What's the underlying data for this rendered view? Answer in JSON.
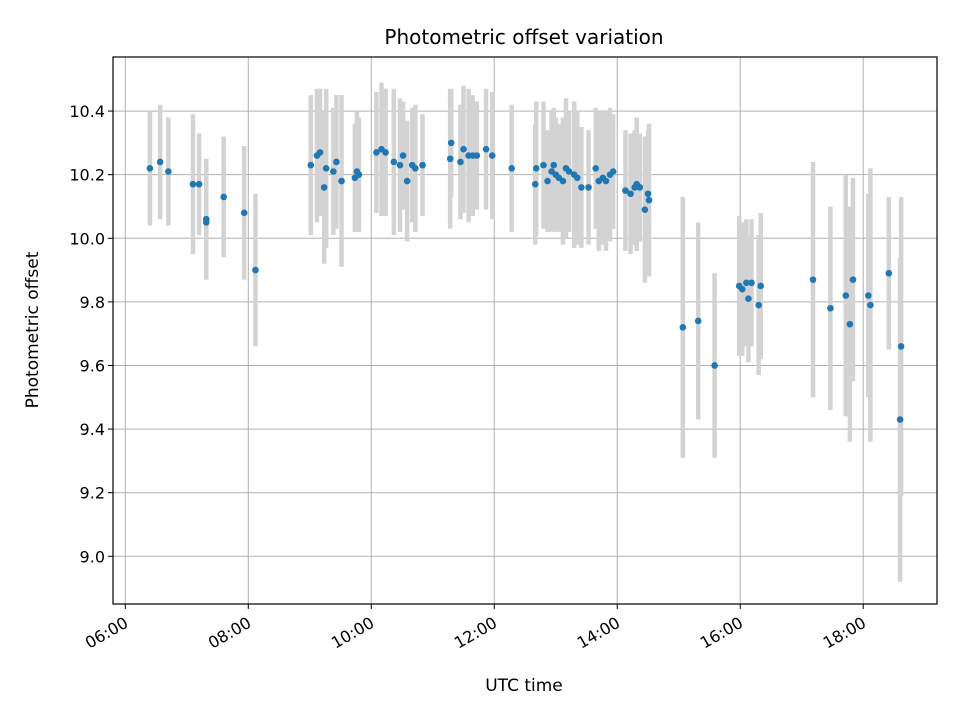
{
  "chart_data": {
    "type": "scatter",
    "title": "Photometric offset variation",
    "xlabel": "UTC time",
    "ylabel": "Photometric offset",
    "xlim": [
      "05:48",
      "19:12"
    ],
    "ylim": [
      8.85,
      10.57
    ],
    "xticks": [
      "06:00",
      "08:00",
      "10:00",
      "12:00",
      "14:00",
      "16:00",
      "18:00"
    ],
    "yticks": [
      "9.0",
      "9.2",
      "9.4",
      "9.6",
      "9.8",
      "10.0",
      "10.2",
      "10.4"
    ],
    "grid": true,
    "marker_color": "#1f77b4",
    "errorbar_color": "#d3d3d3",
    "points": [
      {
        "x": "06:24",
        "y": 10.22,
        "yerr": 0.18
      },
      {
        "x": "06:34",
        "y": 10.24,
        "yerr": 0.18
      },
      {
        "x": "06:42",
        "y": 10.21,
        "yerr": 0.17
      },
      {
        "x": "07:06",
        "y": 10.17,
        "yerr": 0.22
      },
      {
        "x": "07:12",
        "y": 10.17,
        "yerr": 0.16
      },
      {
        "x": "07:19",
        "y": 10.06,
        "yerr": 0.19
      },
      {
        "x": "07:19",
        "y": 10.05,
        "yerr": 0.18
      },
      {
        "x": "07:36",
        "y": 10.13,
        "yerr": 0.19
      },
      {
        "x": "07:56",
        "y": 10.08,
        "yerr": 0.21
      },
      {
        "x": "08:07",
        "y": 9.9,
        "yerr": 0.24
      },
      {
        "x": "09:01",
        "y": 10.23,
        "yerr": 0.22
      },
      {
        "x": "09:07",
        "y": 10.26,
        "yerr": 0.21
      },
      {
        "x": "09:10",
        "y": 10.27,
        "yerr": 0.2
      },
      {
        "x": "09:14",
        "y": 10.16,
        "yerr": 0.24
      },
      {
        "x": "09:16",
        "y": 10.22,
        "yerr": 0.25
      },
      {
        "x": "09:23",
        "y": 10.21,
        "yerr": 0.2
      },
      {
        "x": "09:26",
        "y": 10.24,
        "yerr": 0.21
      },
      {
        "x": "09:31",
        "y": 10.18,
        "yerr": 0.27
      },
      {
        "x": "09:44",
        "y": 10.19,
        "yerr": 0.17
      },
      {
        "x": "09:46",
        "y": 10.21,
        "yerr": 0.19
      },
      {
        "x": "09:48",
        "y": 10.2,
        "yerr": 0.18
      },
      {
        "x": "10:05",
        "y": 10.27,
        "yerr": 0.19
      },
      {
        "x": "10:10",
        "y": 10.28,
        "yerr": 0.21
      },
      {
        "x": "10:14",
        "y": 10.27,
        "yerr": 0.2
      },
      {
        "x": "10:22",
        "y": 10.24,
        "yerr": 0.23
      },
      {
        "x": "10:28",
        "y": 10.23,
        "yerr": 0.21
      },
      {
        "x": "10:31",
        "y": 10.26,
        "yerr": 0.17
      },
      {
        "x": "10:35",
        "y": 10.18,
        "yerr": 0.19
      },
      {
        "x": "10:40",
        "y": 10.23,
        "yerr": 0.18
      },
      {
        "x": "10:43",
        "y": 10.22,
        "yerr": 0.2
      },
      {
        "x": "10:50",
        "y": 10.23,
        "yerr": 0.16
      },
      {
        "x": "11:17",
        "y": 10.25,
        "yerr": 0.22
      },
      {
        "x": "11:18",
        "y": 10.3,
        "yerr": 0.17
      },
      {
        "x": "11:27",
        "y": 10.24,
        "yerr": 0.18
      },
      {
        "x": "11:30",
        "y": 10.28,
        "yerr": 0.2
      },
      {
        "x": "11:35",
        "y": 10.26,
        "yerr": 0.21
      },
      {
        "x": "11:39",
        "y": 10.26,
        "yerr": 0.19
      },
      {
        "x": "11:43",
        "y": 10.26,
        "yerr": 0.17
      },
      {
        "x": "11:52",
        "y": 10.28,
        "yerr": 0.19
      },
      {
        "x": "11:58",
        "y": 10.26,
        "yerr": 0.2
      },
      {
        "x": "12:17",
        "y": 10.22,
        "yerr": 0.2
      },
      {
        "x": "12:40",
        "y": 10.17,
        "yerr": 0.19
      },
      {
        "x": "12:41",
        "y": 10.22,
        "yerr": 0.21
      },
      {
        "x": "12:48",
        "y": 10.23,
        "yerr": 0.2
      },
      {
        "x": "12:52",
        "y": 10.18,
        "yerr": 0.16
      },
      {
        "x": "12:56",
        "y": 10.21,
        "yerr": 0.19
      },
      {
        "x": "12:58",
        "y": 10.23,
        "yerr": 0.18
      },
      {
        "x": "13:00",
        "y": 10.2,
        "yerr": 0.18
      },
      {
        "x": "13:03",
        "y": 10.19,
        "yerr": 0.17
      },
      {
        "x": "13:07",
        "y": 10.18,
        "yerr": 0.2
      },
      {
        "x": "13:10",
        "y": 10.22,
        "yerr": 0.22
      },
      {
        "x": "13:13",
        "y": 10.21,
        "yerr": 0.19
      },
      {
        "x": "13:18",
        "y": 10.2,
        "yerr": 0.23
      },
      {
        "x": "13:21",
        "y": 10.19,
        "yerr": 0.21
      },
      {
        "x": "13:25",
        "y": 10.16,
        "yerr": 0.19
      },
      {
        "x": "13:32",
        "y": 10.16,
        "yerr": 0.18
      },
      {
        "x": "13:39",
        "y": 10.22,
        "yerr": 0.19
      },
      {
        "x": "13:42",
        "y": 10.18,
        "yerr": 0.22
      },
      {
        "x": "13:46",
        "y": 10.19,
        "yerr": 0.21
      },
      {
        "x": "13:49",
        "y": 10.18,
        "yerr": 0.22
      },
      {
        "x": "13:53",
        "y": 10.2,
        "yerr": 0.21
      },
      {
        "x": "13:56",
        "y": 10.21,
        "yerr": 0.18
      },
      {
        "x": "14:08",
        "y": 10.15,
        "yerr": 0.19
      },
      {
        "x": "14:13",
        "y": 10.14,
        "yerr": 0.19
      },
      {
        "x": "14:17",
        "y": 10.16,
        "yerr": 0.18
      },
      {
        "x": "14:19",
        "y": 10.17,
        "yerr": 0.21
      },
      {
        "x": "14:22",
        "y": 10.16,
        "yerr": 0.17
      },
      {
        "x": "14:27",
        "y": 10.09,
        "yerr": 0.23
      },
      {
        "x": "14:30",
        "y": 10.14,
        "yerr": 0.2
      },
      {
        "x": "14:31",
        "y": 10.12,
        "yerr": 0.24
      },
      {
        "x": "15:04",
        "y": 9.72,
        "yerr": 0.41
      },
      {
        "x": "15:19",
        "y": 9.74,
        "yerr": 0.31
      },
      {
        "x": "15:35",
        "y": 9.6,
        "yerr": 0.29
      },
      {
        "x": "15:59",
        "y": 9.85,
        "yerr": 0.22
      },
      {
        "x": "16:02",
        "y": 9.84,
        "yerr": 0.21
      },
      {
        "x": "16:06",
        "y": 9.86,
        "yerr": 0.2
      },
      {
        "x": "16:08",
        "y": 9.81,
        "yerr": 0.2
      },
      {
        "x": "16:11",
        "y": 9.86,
        "yerr": 0.2
      },
      {
        "x": "16:18",
        "y": 9.79,
        "yerr": 0.22
      },
      {
        "x": "16:20",
        "y": 9.85,
        "yerr": 0.23
      },
      {
        "x": "17:11",
        "y": 9.87,
        "yerr": 0.37
      },
      {
        "x": "17:28",
        "y": 9.78,
        "yerr": 0.32
      },
      {
        "x": "17:43",
        "y": 9.82,
        "yerr": 0.38
      },
      {
        "x": "17:47",
        "y": 9.73,
        "yerr": 0.37
      },
      {
        "x": "17:50",
        "y": 9.87,
        "yerr": 0.32
      },
      {
        "x": "18:05",
        "y": 9.82,
        "yerr": 0.32
      },
      {
        "x": "18:07",
        "y": 9.79,
        "yerr": 0.43
      },
      {
        "x": "18:25",
        "y": 9.89,
        "yerr": 0.24
      },
      {
        "x": "18:37",
        "y": 9.66,
        "yerr": 0.47
      },
      {
        "x": "18:36",
        "y": 9.43,
        "yerr": 0.51
      }
    ]
  }
}
